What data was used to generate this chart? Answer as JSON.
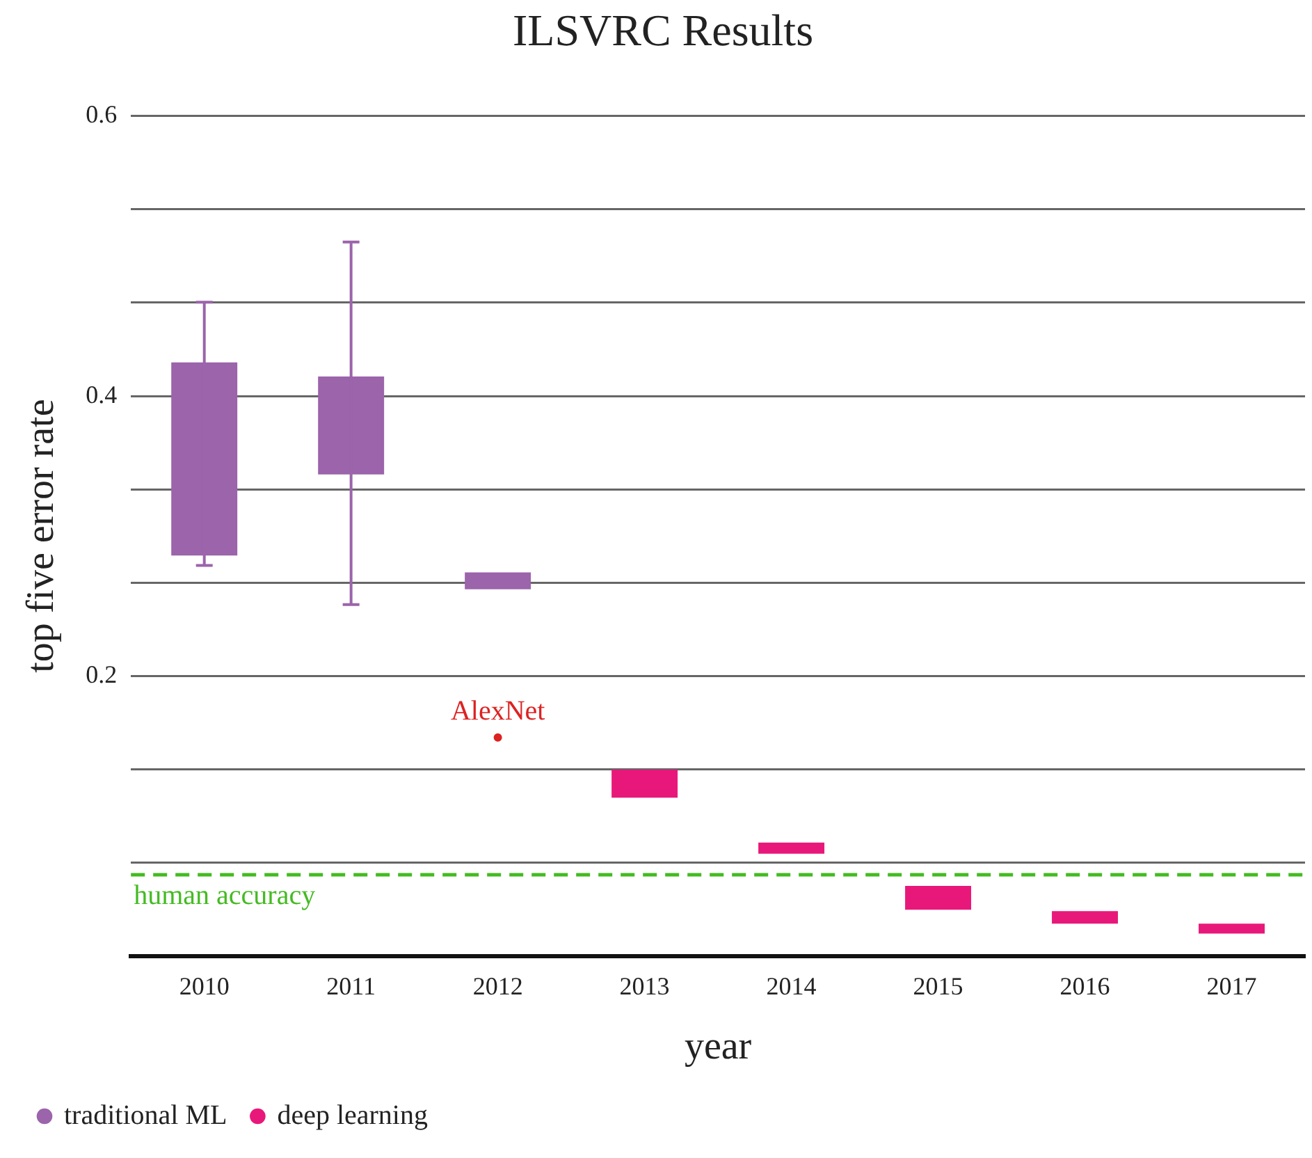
{
  "chart_data": {
    "type": "bar",
    "title": "ILSVRC Results",
    "xlabel": "year",
    "ylabel": "top five error rate",
    "categories": [
      "2010",
      "2011",
      "2012",
      "2013",
      "2014",
      "2015",
      "2016",
      "2017"
    ],
    "series": [
      {
        "name": "traditional ML",
        "color": "#9b64ab",
        "base": [
          0.286,
          0.344,
          0.262,
          null,
          null,
          null,
          null,
          null
        ],
        "values": [
          0.138,
          0.07,
          0.012,
          null,
          null,
          null,
          null,
          null
        ],
        "errors": [
          [
            0.279,
            0.467
          ],
          [
            0.251,
            0.51
          ],
          null,
          null,
          null,
          null,
          null,
          null
        ]
      },
      {
        "name": "deep learning",
        "color": "#e8187a",
        "base": [
          null,
          null,
          null,
          0.113,
          0.073,
          0.033,
          0.023,
          0.016
        ],
        "values": [
          null,
          null,
          null,
          0.02,
          0.008,
          0.017,
          0.009,
          0.007
        ]
      },
      {
        "type": "scatter",
        "color": "#dd2222",
        "values": [
          null,
          null,
          0.156,
          null,
          null,
          null,
          null,
          null
        ]
      }
    ],
    "annotations": [
      {
        "text": "AlexNet",
        "x": "2012",
        "y": 0.156
      }
    ],
    "ref_lines": [
      {
        "axis": "y",
        "value": 0.058,
        "label": "human accuracy",
        "color": "#44bb22",
        "line_style": "dashed"
      }
    ],
    "ylim": [
      0,
      0.6
    ],
    "yticks": [
      {
        "value": 0,
        "label": null
      },
      {
        "value": 0.0667,
        "label": null
      },
      {
        "value": 0.1333,
        "label": null
      },
      0.2,
      {
        "value": 0.2667,
        "label": null
      },
      {
        "value": 0.3333,
        "label": null
      },
      0.4,
      {
        "value": 0.4667,
        "label": null
      },
      {
        "value": 0.5333,
        "label": null
      },
      0.6
    ],
    "grid": "y",
    "legend": "bottom left"
  }
}
